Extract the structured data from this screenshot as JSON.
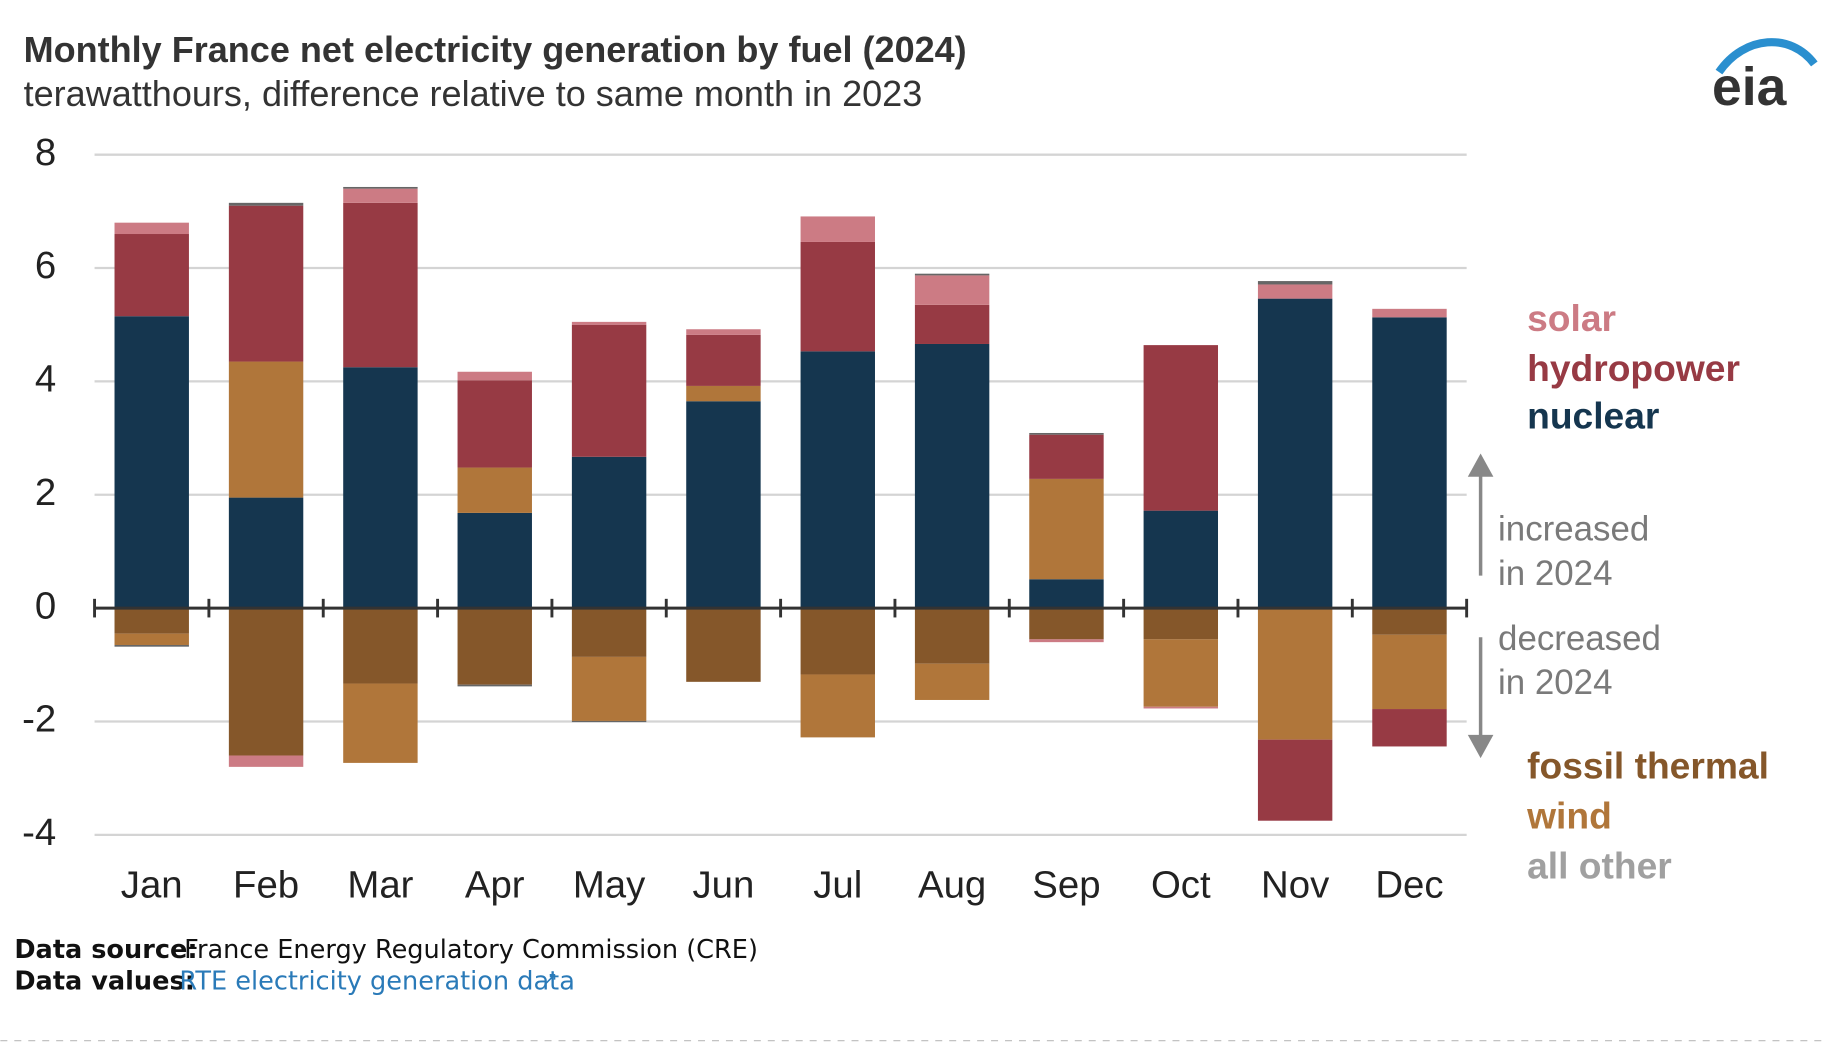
{
  "chart_data": {
    "type": "stacked-bar",
    "title": "Monthly France net electricity generation by fuel (2024)",
    "subtitle": "terawatthours, difference relative to same month in 2023",
    "categories": [
      "Jan",
      "Feb",
      "Mar",
      "Apr",
      "May",
      "Jun",
      "Jul",
      "Aug",
      "Sep",
      "Oct",
      "Nov",
      "Dec"
    ],
    "series": [
      {
        "name": "solar",
        "color": "#cc7b84",
        "values": [
          0.2,
          -0.2,
          0.25,
          0.15,
          0.05,
          0.1,
          0.45,
          0.52,
          -0.05,
          -0.03,
          0.25,
          0.15
        ]
      },
      {
        "name": "hydropower",
        "color": "#973a44",
        "values": [
          1.45,
          2.75,
          2.9,
          1.54,
          2.33,
          0.9,
          1.93,
          0.69,
          0.78,
          2.92,
          -1.43,
          -0.66
        ]
      },
      {
        "name": "nuclear",
        "color": "#15364f",
        "values": [
          5.15,
          1.95,
          4.25,
          1.68,
          2.67,
          3.65,
          4.53,
          4.66,
          0.51,
          1.72,
          5.46,
          5.13
        ]
      },
      {
        "name": "fossil thermal",
        "color": "#85572a",
        "values": [
          -0.45,
          -2.6,
          -1.33,
          -1.35,
          -0.86,
          -1.3,
          -1.17,
          -0.98,
          -0.55,
          -0.55,
          0,
          -0.47
        ]
      },
      {
        "name": "wind",
        "color": "#b0763a",
        "values": [
          -0.2,
          2.4,
          -1.4,
          0.8,
          -1.13,
          0.27,
          -1.11,
          -0.64,
          1.77,
          -1.19,
          -2.32,
          -1.31
        ]
      },
      {
        "name": "all other",
        "color": "#a0a0a0",
        "values": [
          -0.03,
          0.05,
          0.03,
          -0.03,
          -0.02,
          0,
          0,
          0.03,
          0.03,
          0,
          0.06,
          0
        ]
      }
    ],
    "ylim": [
      -4,
      8
    ],
    "yticks": [
      -4,
      -2,
      0,
      2,
      4,
      6,
      8
    ],
    "grid": true,
    "annotations": [
      [
        "increased",
        "in 2024"
      ],
      [
        "decreased",
        "in 2024"
      ]
    ]
  },
  "footer": {
    "source_label": "Data source:",
    "source": "France Energy Regulatory Commission (CRE)",
    "values_label": "Data values:",
    "values_link": "RTE electricity generation data"
  },
  "logo": "eia"
}
